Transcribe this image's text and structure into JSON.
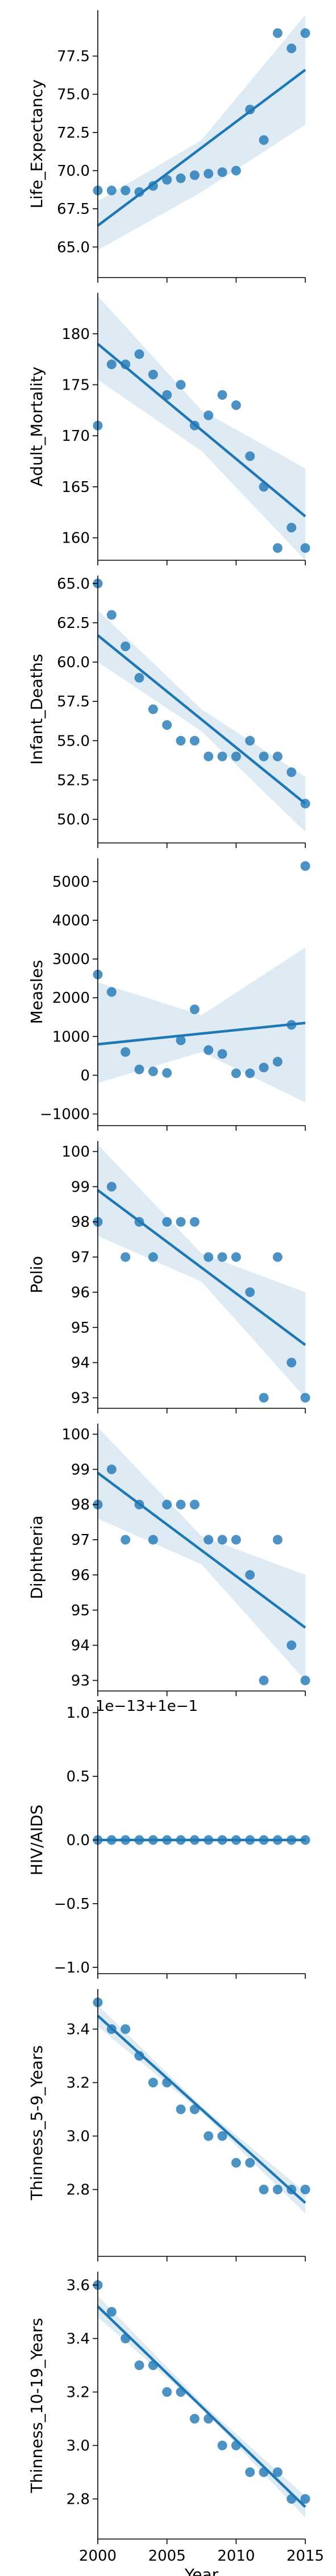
{
  "colors": {
    "accent": "#1f77b4"
  },
  "shared_x": {
    "label": "Year",
    "ticks": [
      2000,
      2005,
      2010,
      2015
    ],
    "range": [
      2000,
      2015
    ]
  },
  "chart_data": [
    {
      "type": "scatter",
      "ylabel": "Life_Expectancy",
      "ylim": [
        63.0,
        80.5
      ],
      "yticks": [
        "65.0",
        "67.5",
        "70.0",
        "72.5",
        "75.0",
        "77.5"
      ],
      "series": [
        {
          "x": [
            2000,
            2001,
            2002,
            2003,
            2004,
            2005,
            2006,
            2007,
            2008,
            2009,
            2010,
            2011,
            2012,
            2013,
            2014,
            2015
          ],
          "y": [
            68.7,
            68.7,
            68.7,
            68.6,
            69.0,
            69.4,
            69.5,
            69.7,
            69.8,
            69.9,
            70.0,
            74.0,
            72.0,
            79.0,
            78.0,
            79.0
          ]
        }
      ],
      "regression": {
        "y_start": 66.4,
        "y_end": 76.6,
        "band_start": [
          64.8,
          68.0
        ],
        "band_end": [
          73.0,
          80.2
        ],
        "band_mid": [
          68.6,
          72.0
        ]
      },
      "offset_text": ""
    },
    {
      "type": "scatter",
      "ylabel": "Adult_Mortality",
      "ylim": [
        157.8,
        184.0
      ],
      "yticks": [
        "160",
        "165",
        "170",
        "175",
        "180"
      ],
      "series": [
        {
          "x": [
            2000,
            2001,
            2002,
            2003,
            2004,
            2005,
            2006,
            2007,
            2008,
            2009,
            2010,
            2011,
            2012,
            2013,
            2014,
            2015
          ],
          "y": [
            171,
            177,
            177,
            178,
            176,
            174,
            175,
            171,
            172,
            174,
            173,
            168,
            165,
            159,
            161,
            159
          ]
        }
      ],
      "regression": {
        "y_start": 179.0,
        "y_end": 162.1,
        "band_start": [
          175.5,
          183.7
        ],
        "band_end": [
          157.8,
          166.8
        ],
        "band_mid": [
          168.5,
          172.5
        ]
      },
      "offset_text": ""
    },
    {
      "type": "scatter",
      "ylabel": "Infant_Deaths",
      "ylim": [
        48.5,
        65.5
      ],
      "yticks": [
        "50.0",
        "52.5",
        "55.0",
        "57.5",
        "60.0",
        "62.5",
        "65.0"
      ],
      "series": [
        {
          "x": [
            2000,
            2001,
            2002,
            2003,
            2004,
            2005,
            2006,
            2007,
            2008,
            2009,
            2010,
            2011,
            2012,
            2013,
            2014,
            2015
          ],
          "y": [
            65,
            63,
            61,
            59,
            57,
            56,
            55,
            55,
            54,
            54,
            54,
            55,
            54,
            54,
            53,
            51
          ]
        }
      ],
      "regression": {
        "y_start": 61.7,
        "y_end": 51.0,
        "band_start": [
          60.0,
          63.3
        ],
        "band_end": [
          49.2,
          52.7
        ],
        "band_mid": [
          55.6,
          57.0
        ]
      },
      "offset_text": ""
    },
    {
      "type": "scatter",
      "ylabel": "Measles",
      "ylim": [
        -1300,
        5600
      ],
      "yticks": [
        "−1000",
        "0",
        "1000",
        "2000",
        "3000",
        "4000",
        "5000"
      ],
      "series": [
        {
          "x": [
            2000,
            2001,
            2002,
            2003,
            2004,
            2005,
            2006,
            2007,
            2008,
            2009,
            2010,
            2011,
            2012,
            2013,
            2014,
            2015
          ],
          "y": [
            2600,
            2150,
            600,
            150,
            100,
            60,
            900,
            1700,
            650,
            550,
            50,
            50,
            200,
            350,
            1300,
            5400
          ]
        }
      ],
      "regression": {
        "y_start": 800,
        "y_end": 1350,
        "band_start": [
          -200,
          2400
        ],
        "band_end": [
          -700,
          3300
        ],
        "band_mid": [
          600,
          1550
        ]
      },
      "offset_text": ""
    },
    {
      "type": "scatter",
      "ylabel": "Polio",
      "ylim": [
        92.7,
        100.3
      ],
      "yticks": [
        "93",
        "94",
        "95",
        "96",
        "97",
        "98",
        "99",
        "100"
      ],
      "series": [
        {
          "x": [
            2000,
            2001,
            2002,
            2003,
            2004,
            2005,
            2006,
            2007,
            2008,
            2009,
            2010,
            2011,
            2012,
            2013,
            2014,
            2015
          ],
          "y": [
            98,
            99,
            97,
            98,
            97,
            98,
            98,
            98,
            97,
            97,
            97,
            96,
            93,
            97,
            94,
            93
          ]
        }
      ],
      "regression": {
        "y_start": 98.9,
        "y_end": 94.5,
        "band_start": [
          97.6,
          100.2
        ],
        "band_end": [
          93.0,
          96.0
        ],
        "band_mid": [
          96.3,
          97.1
        ]
      },
      "offset_text": ""
    },
    {
      "type": "scatter",
      "ylabel": "Diphtheria",
      "ylim": [
        92.7,
        100.3
      ],
      "yticks": [
        "93",
        "94",
        "95",
        "96",
        "97",
        "98",
        "99",
        "100"
      ],
      "series": [
        {
          "x": [
            2000,
            2001,
            2002,
            2003,
            2004,
            2005,
            2006,
            2007,
            2008,
            2009,
            2010,
            2011,
            2012,
            2013,
            2014,
            2015
          ],
          "y": [
            98,
            99,
            97,
            98,
            97,
            98,
            98,
            98,
            97,
            97,
            97,
            96,
            93,
            97,
            94,
            93
          ]
        }
      ],
      "regression": {
        "y_start": 98.9,
        "y_end": 94.5,
        "band_start": [
          97.6,
          100.2
        ],
        "band_end": [
          93.0,
          96.0
        ],
        "band_mid": [
          96.3,
          97.1
        ]
      },
      "offset_text": ""
    },
    {
      "type": "scatter",
      "ylabel": "HIV/AIDS",
      "ylim": [
        -1.05,
        1.05
      ],
      "yticks": [
        "−1.0",
        "−0.5",
        "0.0",
        "0.5",
        "1.0"
      ],
      "series": [
        {
          "x": [
            2000,
            2001,
            2002,
            2003,
            2004,
            2005,
            2006,
            2007,
            2008,
            2009,
            2010,
            2011,
            2012,
            2013,
            2014,
            2015
          ],
          "y": [
            0,
            0,
            0,
            0,
            0,
            0,
            0,
            0,
            0,
            0,
            0,
            0,
            0,
            0,
            0,
            0
          ]
        }
      ],
      "regression": {
        "y_start": 0,
        "y_end": 0,
        "band_start": [
          0,
          0
        ],
        "band_end": [
          0,
          0
        ],
        "band_mid": [
          0,
          0
        ]
      },
      "offset_text": "1e−13+1e−1"
    },
    {
      "type": "scatter",
      "ylabel": "Thinness_5-9_Years",
      "ylim": [
        2.55,
        3.55
      ],
      "yticks": [
        "2.8",
        "3.0",
        "3.2",
        "3.4"
      ],
      "series": [
        {
          "x": [
            2000,
            2001,
            2002,
            2003,
            2004,
            2005,
            2006,
            2007,
            2008,
            2009,
            2010,
            2011,
            2012,
            2013,
            2014,
            2015
          ],
          "y": [
            3.5,
            3.4,
            3.4,
            3.3,
            3.2,
            3.2,
            3.1,
            3.1,
            3.0,
            3.0,
            2.9,
            2.9,
            2.8,
            2.8,
            2.8,
            2.8
          ]
        }
      ],
      "regression": {
        "y_start": 3.45,
        "y_end": 2.75,
        "band_start": [
          3.41,
          3.49
        ],
        "band_end": [
          2.71,
          2.79
        ],
        "band_mid": [
          3.09,
          3.11
        ]
      },
      "offset_text": ""
    },
    {
      "type": "scatter",
      "ylabel": "Thinness_10-19_Years",
      "ylim": [
        2.65,
        3.65
      ],
      "yticks": [
        "2.8",
        "3.0",
        "3.2",
        "3.4",
        "3.6"
      ],
      "series": [
        {
          "x": [
            2000,
            2001,
            2002,
            2003,
            2004,
            2005,
            2006,
            2007,
            2008,
            2009,
            2010,
            2011,
            2012,
            2013,
            2014,
            2015
          ],
          "y": [
            3.6,
            3.5,
            3.4,
            3.3,
            3.3,
            3.2,
            3.2,
            3.1,
            3.1,
            3.0,
            3.0,
            2.9,
            2.9,
            2.9,
            2.8,
            2.8
          ]
        }
      ],
      "regression": {
        "y_start": 3.52,
        "y_end": 2.77,
        "band_start": [
          3.48,
          3.56
        ],
        "band_end": [
          2.73,
          2.81
        ],
        "band_mid": [
          3.14,
          3.16
        ]
      },
      "offset_text": ""
    }
  ]
}
